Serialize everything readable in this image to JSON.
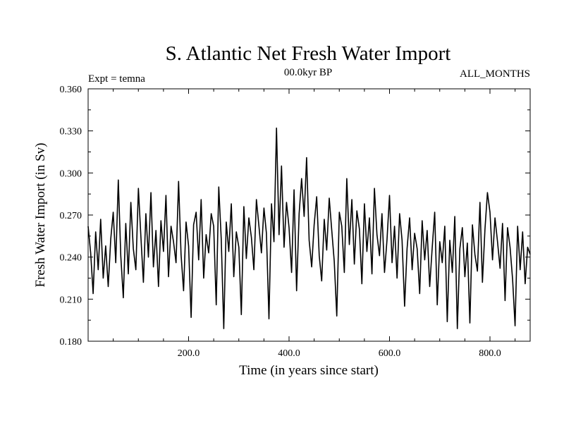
{
  "chart_data": {
    "type": "line",
    "title": "S. Atlantic Net Fresh Water Import",
    "header_left": "Expt = temna",
    "header_center": "00.0kyr BP",
    "header_right": "ALL_MONTHS",
    "xlabel": "Time (in years since start)",
    "ylabel": "Fresh Water Import (in Sv)",
    "xlim": [
      0,
      880
    ],
    "ylim": [
      0.18,
      0.36
    ],
    "x_ticks": [
      200,
      400,
      600,
      800
    ],
    "x_tick_labels": [
      "200.0",
      "400.0",
      "600.0",
      "800.0"
    ],
    "y_ticks": [
      0.18,
      0.21,
      0.24,
      0.27,
      0.3,
      0.33,
      0.36
    ],
    "y_tick_labels": [
      "0.180",
      "0.210",
      "0.240",
      "0.270",
      "0.300",
      "0.330",
      "0.360"
    ],
    "grid": false,
    "line_color": "#000000",
    "series": [
      {
        "x": [
          0,
          5,
          10,
          15,
          20,
          25,
          30,
          35,
          40,
          45,
          50,
          55,
          60,
          65,
          70,
          75,
          80,
          85,
          90,
          95,
          100,
          105,
          110,
          115,
          120,
          125,
          130,
          135,
          140,
          145,
          150,
          155,
          160,
          165,
          170,
          175,
          180,
          185,
          190,
          195,
          200,
          205,
          210,
          215,
          220,
          225,
          230,
          235,
          240,
          245,
          250,
          255,
          260,
          265,
          270,
          275,
          280,
          285,
          290,
          295,
          300,
          305,
          310,
          315,
          320,
          325,
          330,
          335,
          340,
          345,
          350,
          355,
          360,
          365,
          370,
          375,
          380,
          385,
          390,
          395,
          400,
          405,
          410,
          415,
          420,
          425,
          430,
          435,
          440,
          445,
          450,
          455,
          460,
          465,
          470,
          475,
          480,
          485,
          490,
          495,
          500,
          505,
          510,
          515,
          520,
          525,
          530,
          535,
          540,
          545,
          550,
          555,
          560,
          565,
          570,
          575,
          580,
          585,
          590,
          595,
          600,
          605,
          610,
          615,
          620,
          625,
          630,
          635,
          640,
          645,
          650,
          655,
          660,
          665,
          670,
          675,
          680,
          685,
          690,
          695,
          700,
          705,
          710,
          715,
          720,
          725,
          730,
          735,
          740,
          745,
          750,
          755,
          760,
          765,
          770,
          775,
          780,
          785,
          790,
          795,
          800,
          805,
          810,
          815,
          820,
          825,
          830,
          835,
          840,
          845,
          850,
          855,
          860,
          865,
          870,
          875,
          880
        ],
        "y": [
          0.262,
          0.243,
          0.214,
          0.258,
          0.231,
          0.267,
          0.225,
          0.248,
          0.219,
          0.253,
          0.272,
          0.236,
          0.295,
          0.241,
          0.211,
          0.264,
          0.228,
          0.279,
          0.246,
          0.231,
          0.289,
          0.255,
          0.222,
          0.271,
          0.24,
          0.286,
          0.233,
          0.259,
          0.219,
          0.266,
          0.244,
          0.284,
          0.226,
          0.262,
          0.251,
          0.236,
          0.294,
          0.242,
          0.216,
          0.265,
          0.248,
          0.197,
          0.263,
          0.272,
          0.238,
          0.281,
          0.225,
          0.256,
          0.243,
          0.271,
          0.262,
          0.206,
          0.29,
          0.253,
          0.189,
          0.265,
          0.244,
          0.278,
          0.226,
          0.258,
          0.247,
          0.199,
          0.276,
          0.239,
          0.268,
          0.254,
          0.231,
          0.281,
          0.262,
          0.243,
          0.275,
          0.257,
          0.196,
          0.278,
          0.251,
          0.332,
          0.256,
          0.305,
          0.247,
          0.279,
          0.261,
          0.229,
          0.288,
          0.216,
          0.271,
          0.296,
          0.269,
          0.311,
          0.252,
          0.233,
          0.263,
          0.283,
          0.241,
          0.223,
          0.267,
          0.245,
          0.282,
          0.259,
          0.237,
          0.198,
          0.272,
          0.262,
          0.229,
          0.296,
          0.249,
          0.281,
          0.235,
          0.273,
          0.26,
          0.221,
          0.278,
          0.244,
          0.268,
          0.228,
          0.289,
          0.256,
          0.241,
          0.271,
          0.229,
          0.252,
          0.284,
          0.236,
          0.262,
          0.225,
          0.271,
          0.252,
          0.205,
          0.246,
          0.268,
          0.231,
          0.257,
          0.246,
          0.214,
          0.266,
          0.238,
          0.259,
          0.219,
          0.247,
          0.272,
          0.206,
          0.251,
          0.236,
          0.262,
          0.194,
          0.252,
          0.229,
          0.269,
          0.189,
          0.246,
          0.261,
          0.226,
          0.25,
          0.193,
          0.263,
          0.242,
          0.23,
          0.279,
          0.222,
          0.26,
          0.286,
          0.272,
          0.238,
          0.268,
          0.251,
          0.232,
          0.264,
          0.209,
          0.261,
          0.247,
          0.224,
          0.191,
          0.262,
          0.231,
          0.258,
          0.221,
          0.247,
          0.242
        ]
      }
    ]
  }
}
